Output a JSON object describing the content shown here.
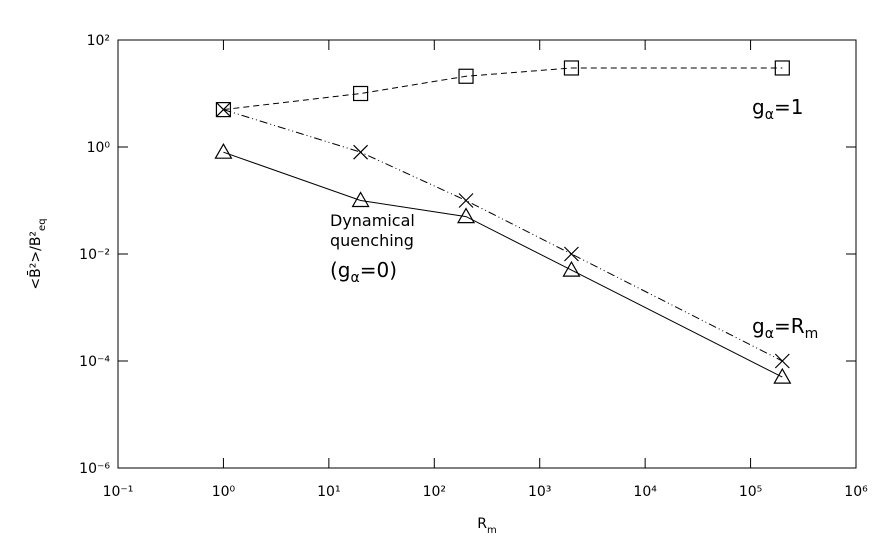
{
  "chart_data": {
    "type": "line",
    "log_x": true,
    "log_y": true,
    "x": [
      1,
      20,
      200,
      2000,
      200000
    ],
    "series": [
      {
        "marker": "square",
        "dash": "dashed",
        "color": "#000000",
        "values": [
          5,
          10,
          21,
          30,
          30
        ]
      },
      {
        "marker": "cross",
        "dash": "dash-dot-dot",
        "color": "#000000",
        "values": [
          5,
          0.8,
          0.1,
          0.01,
          0.0001
        ]
      },
      {
        "marker": "triangle",
        "dash": "solid",
        "color": "#000000",
        "values": [
          0.8,
          0.1,
          0.05,
          0.005,
          5e-05
        ]
      }
    ],
    "xlim": [
      0.1,
      1000000
    ],
    "ylim": [
      1e-06,
      100
    ],
    "xticks": [
      {
        "value": 0.1,
        "label": "10⁻¹"
      },
      {
        "value": 1,
        "label": "10⁰"
      },
      {
        "value": 10,
        "label": "10¹"
      },
      {
        "value": 100,
        "label": "10²"
      },
      {
        "value": 1000,
        "label": "10³"
      },
      {
        "value": 10000,
        "label": "10⁴"
      },
      {
        "value": 100000,
        "label": "10⁵"
      },
      {
        "value": 1000000,
        "label": "10⁶"
      }
    ],
    "yticks": [
      {
        "value": 1e-06,
        "label": "10⁻⁶"
      },
      {
        "value": 0.0001,
        "label": "10⁻⁴"
      },
      {
        "value": 0.01,
        "label": "10⁻²"
      },
      {
        "value": 1,
        "label": "10⁰"
      },
      {
        "value": 100,
        "label": "10²"
      }
    ],
    "xlabel": {
      "main": "R",
      "sub": "m"
    },
    "ylabel": {
      "main": "<B̄²>/B²",
      "sub": "eq"
    },
    "annotations": [
      {
        "parts": [
          "g",
          "α",
          "=1"
        ]
      },
      {
        "parts": [
          "g",
          "α",
          "=R",
          "m"
        ]
      },
      {
        "parts": [
          "Dynamical"
        ]
      },
      {
        "parts": [
          "quenching"
        ]
      },
      {
        "parts": [
          "(g",
          "α",
          "=0)"
        ]
      }
    ]
  }
}
